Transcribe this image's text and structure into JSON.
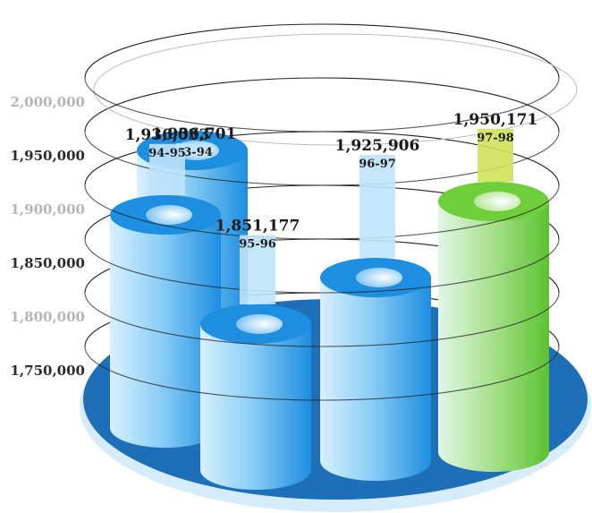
{
  "chart_data": {
    "type": "bar",
    "categories": [
      "93-94",
      "94-95",
      "95-96",
      "96-97",
      "97-98"
    ],
    "values": [
      1936701,
      1936033,
      1851177,
      1925906,
      1950171
    ],
    "value_labels": [
      "1,936,701",
      "1,936,033",
      "1,851,177",
      "1,925,906",
      "1,950,171"
    ],
    "y_ticks": [
      "1,750,000",
      "1,800,000",
      "1,850,000",
      "1,900,000",
      "1,950,000",
      "2,000,000"
    ],
    "ylim": [
      1750000,
      2000000
    ],
    "title": "",
    "xlabel": "",
    "ylabel": "",
    "grid": true,
    "style": "3d-cylinders",
    "colors": {
      "cylinder_blue": "#1e8ee0",
      "cylinder_light": "#bfe3fb",
      "cylinder_green": "#6fcf3a",
      "highlight_green": "#cfe25a",
      "base_plate": "#1d6fb8",
      "tick_dark": "#2a2a2a",
      "tick_light": "#b5b5b5"
    }
  }
}
